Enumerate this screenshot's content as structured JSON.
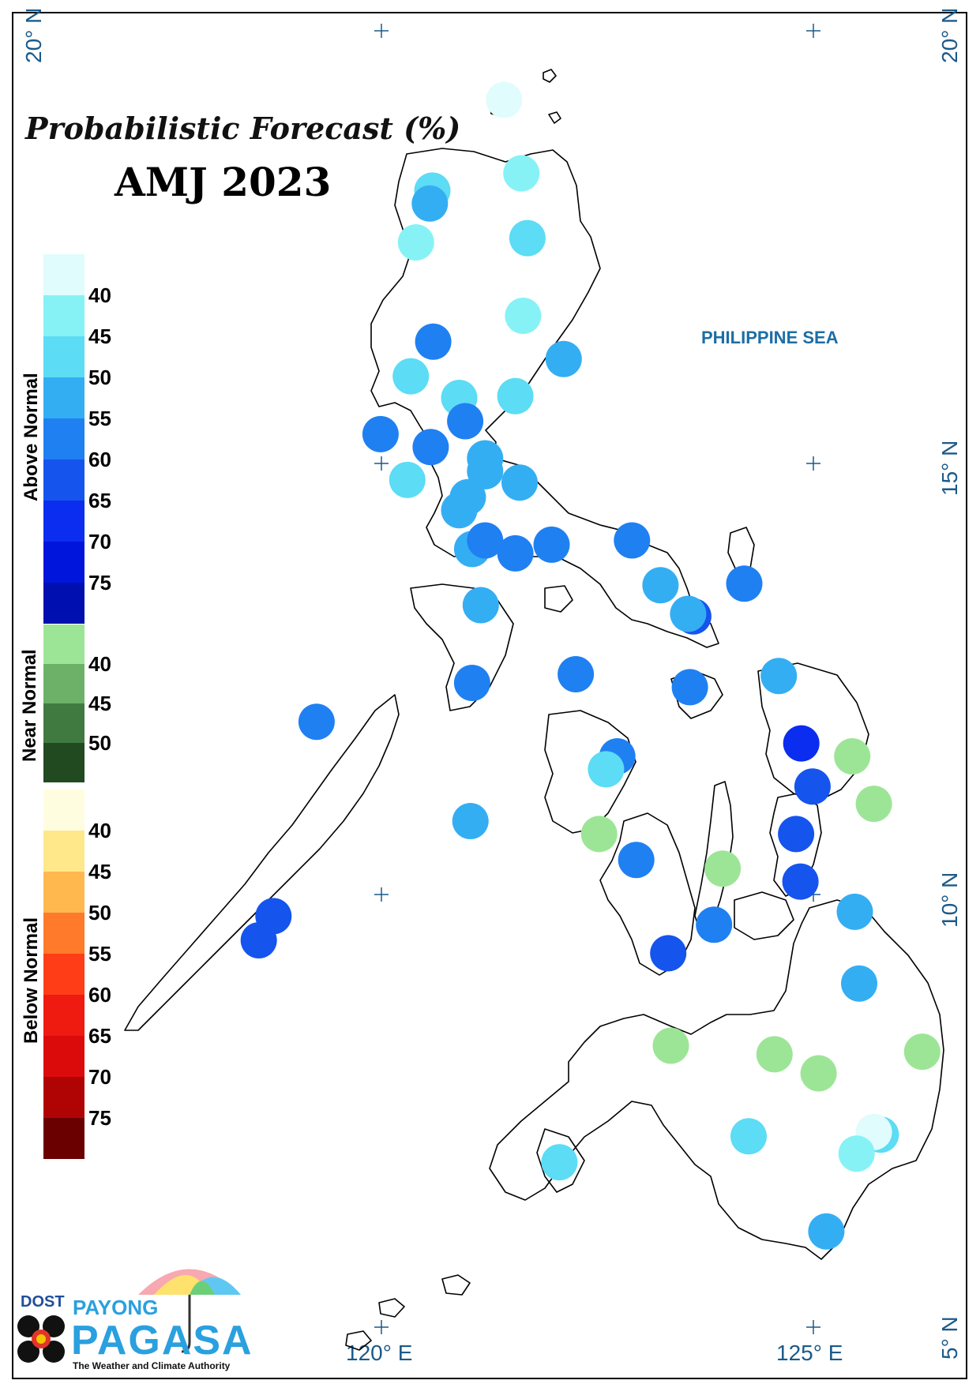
{
  "title": "Probabilistic Forecast (%)",
  "period": "AMJ 2023",
  "sea_label": "PHILIPPINE SEA",
  "lat_labels": [
    "20° N",
    "15° N",
    "10° N",
    "5° N"
  ],
  "lon_labels": [
    "120° E",
    "125° E"
  ],
  "legend": {
    "above": {
      "label": "Above Normal",
      "ticks": [
        "40",
        "45",
        "50",
        "55",
        "60",
        "65",
        "70",
        "75"
      ],
      "colors": [
        "#e0fcfc",
        "#86f2f6",
        "#5cdcf5",
        "#34aef3",
        "#1f80f2",
        "#1654ee",
        "#0a2df0",
        "#0015dc",
        "#0010b0"
      ]
    },
    "near": {
      "label": "Near Normal",
      "ticks": [
        "40",
        "45",
        "50"
      ],
      "colors": [
        "#9de596",
        "#6db169",
        "#417a40",
        "#214a21"
      ]
    },
    "below": {
      "label": "Below Normal",
      "ticks": [
        "40",
        "45",
        "50",
        "55",
        "60",
        "65",
        "70",
        "75"
      ],
      "colors": [
        "#fffde0",
        "#ffe88a",
        "#ffb84e",
        "#ff7a2a",
        "#ff3e17",
        "#ef1a10",
        "#dc0b0b",
        "#b00404",
        "#6b0000"
      ]
    }
  },
  "logo": {
    "dost": "DOST",
    "payong": "PAYONG",
    "pagasa": "PAGASA",
    "tagline": "The Weather and Climate Authority"
  },
  "stations": [
    {
      "lon": 121.42,
      "lat": 19.2,
      "color": "#e0fcfc"
    },
    {
      "lon": 121.62,
      "lat": 18.35,
      "color": "#86f2f6"
    },
    {
      "lon": 120.59,
      "lat": 18.15,
      "color": "#5cdcf5"
    },
    {
      "lon": 120.56,
      "lat": 18.0,
      "color": "#34aef3"
    },
    {
      "lon": 120.4,
      "lat": 17.55,
      "color": "#86f2f6"
    },
    {
      "lon": 121.69,
      "lat": 17.6,
      "color": "#5cdcf5"
    },
    {
      "lon": 121.64,
      "lat": 16.7,
      "color": "#86f2f6"
    },
    {
      "lon": 120.6,
      "lat": 16.4,
      "color": "#1f80f2"
    },
    {
      "lon": 122.11,
      "lat": 16.2,
      "color": "#34aef3"
    },
    {
      "lon": 120.34,
      "lat": 16.0,
      "color": "#5cdcf5"
    },
    {
      "lon": 120.9,
      "lat": 15.75,
      "color": "#5cdcf5"
    },
    {
      "lon": 121.55,
      "lat": 15.77,
      "color": "#5cdcf5"
    },
    {
      "lon": 120.97,
      "lat": 15.48,
      "color": "#1f80f2"
    },
    {
      "lon": 119.99,
      "lat": 15.33,
      "color": "#1f80f2"
    },
    {
      "lon": 120.57,
      "lat": 15.18,
      "color": "#1f80f2"
    },
    {
      "lon": 121.2,
      "lat": 15.05,
      "color": "#34aef3"
    },
    {
      "lon": 121.2,
      "lat": 14.9,
      "color": "#34aef3"
    },
    {
      "lon": 120.3,
      "lat": 14.8,
      "color": "#5cdcf5"
    },
    {
      "lon": 121.6,
      "lat": 14.77,
      "color": "#34aef3"
    },
    {
      "lon": 121.0,
      "lat": 14.6,
      "color": "#34aef3"
    },
    {
      "lon": 120.9,
      "lat": 14.45,
      "color": "#34aef3"
    },
    {
      "lon": 121.05,
      "lat": 14.0,
      "color": "#34aef3"
    },
    {
      "lon": 121.2,
      "lat": 14.1,
      "color": "#1f80f2"
    },
    {
      "lon": 121.55,
      "lat": 13.95,
      "color": "#1f80f2"
    },
    {
      "lon": 121.97,
      "lat": 14.05,
      "color": "#1f80f2"
    },
    {
      "lon": 122.9,
      "lat": 14.1,
      "color": "#1f80f2"
    },
    {
      "lon": 121.15,
      "lat": 13.35,
      "color": "#34aef3"
    },
    {
      "lon": 123.23,
      "lat": 13.58,
      "color": "#34aef3"
    },
    {
      "lon": 124.2,
      "lat": 13.6,
      "color": "#1f80f2"
    },
    {
      "lon": 123.61,
      "lat": 13.22,
      "color": "#1654ee"
    },
    {
      "lon": 123.55,
      "lat": 13.25,
      "color": "#34aef3"
    },
    {
      "lon": 122.25,
      "lat": 12.55,
      "color": "#1f80f2"
    },
    {
      "lon": 121.05,
      "lat": 12.45,
      "color": "#1f80f2"
    },
    {
      "lon": 123.57,
      "lat": 12.4,
      "color": "#1f80f2"
    },
    {
      "lon": 124.6,
      "lat": 12.53,
      "color": "#34aef3"
    },
    {
      "lon": 119.25,
      "lat": 12.0,
      "color": "#1f80f2"
    },
    {
      "lon": 124.86,
      "lat": 11.75,
      "color": "#0a2df0"
    },
    {
      "lon": 125.45,
      "lat": 11.6,
      "color": "#9de596"
    },
    {
      "lon": 122.73,
      "lat": 11.6,
      "color": "#1f80f2"
    },
    {
      "lon": 122.6,
      "lat": 11.45,
      "color": "#5cdcf5"
    },
    {
      "lon": 124.99,
      "lat": 11.25,
      "color": "#1654ee"
    },
    {
      "lon": 125.7,
      "lat": 11.05,
      "color": "#9de596"
    },
    {
      "lon": 121.03,
      "lat": 10.85,
      "color": "#34aef3"
    },
    {
      "lon": 122.52,
      "lat": 10.7,
      "color": "#9de596"
    },
    {
      "lon": 124.8,
      "lat": 10.7,
      "color": "#1654ee"
    },
    {
      "lon": 122.95,
      "lat": 10.4,
      "color": "#1f80f2"
    },
    {
      "lon": 123.95,
      "lat": 10.3,
      "color": "#9de596"
    },
    {
      "lon": 124.85,
      "lat": 10.15,
      "color": "#1654ee"
    },
    {
      "lon": 125.48,
      "lat": 9.8,
      "color": "#34aef3"
    },
    {
      "lon": 118.75,
      "lat": 9.75,
      "color": "#1654ee"
    },
    {
      "lon": 123.85,
      "lat": 9.65,
      "color": "#1f80f2"
    },
    {
      "lon": 118.58,
      "lat": 9.47,
      "color": "#1654ee"
    },
    {
      "lon": 123.32,
      "lat": 9.32,
      "color": "#1654ee"
    },
    {
      "lon": 125.53,
      "lat": 8.97,
      "color": "#34aef3"
    },
    {
      "lon": 123.35,
      "lat": 8.25,
      "color": "#9de596"
    },
    {
      "lon": 124.55,
      "lat": 8.15,
      "color": "#9de596"
    },
    {
      "lon": 126.26,
      "lat": 8.18,
      "color": "#9de596"
    },
    {
      "lon": 125.06,
      "lat": 7.93,
      "color": "#9de596"
    },
    {
      "lon": 124.25,
      "lat": 7.2,
      "color": "#5cdcf5"
    },
    {
      "lon": 125.78,
      "lat": 7.22,
      "color": "#5cdcf5"
    },
    {
      "lon": 125.7,
      "lat": 7.25,
      "color": "#e0fcfc"
    },
    {
      "lon": 125.5,
      "lat": 7.0,
      "color": "#86f2f6"
    },
    {
      "lon": 122.06,
      "lat": 6.9,
      "color": "#5cdcf5"
    },
    {
      "lon": 125.15,
      "lat": 6.1,
      "color": "#34aef3"
    }
  ]
}
